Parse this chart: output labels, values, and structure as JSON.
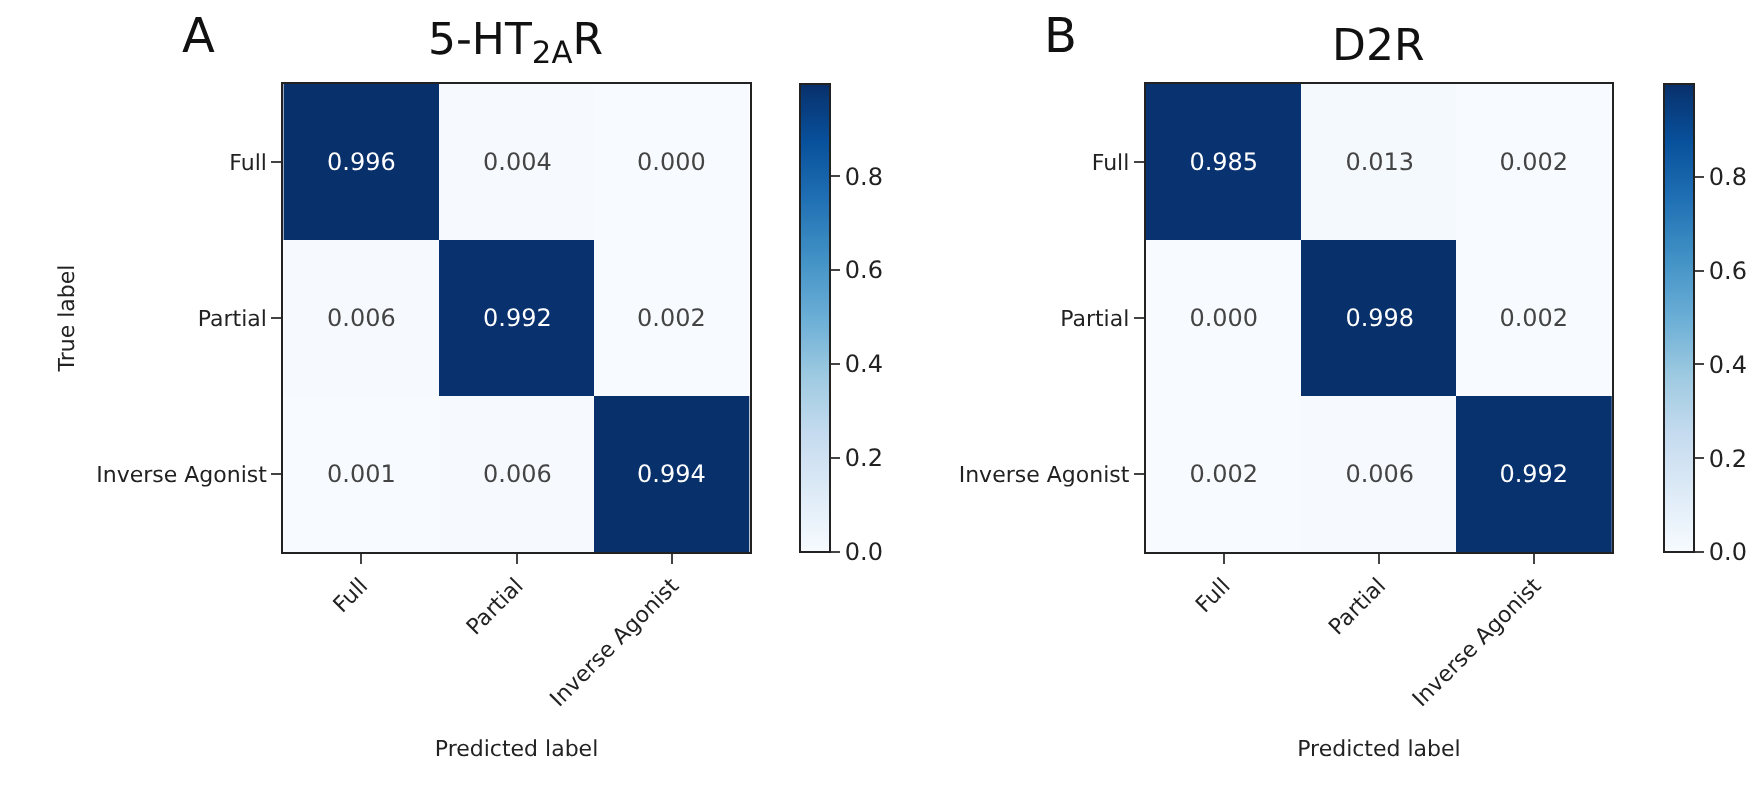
{
  "chart_data": [
    {
      "type": "heatmap",
      "title": "5-HT$_{2A}$R",
      "annotations": [
        "A"
      ],
      "xlabel": "Predicted label",
      "ylabel": "True label",
      "categories": [
        "Full",
        "Partial",
        "Inverse Agonist"
      ],
      "y_categories": [
        "Full",
        "Partial",
        "Inverse Agonist"
      ],
      "cells": [
        [
          0.996,
          0.004,
          0.0
        ],
        [
          0.006,
          0.992,
          0.002
        ],
        [
          0.001,
          0.006,
          0.994
        ]
      ],
      "cell_labels": [
        [
          "0.996",
          "0.004",
          "0.000"
        ],
        [
          "0.006",
          "0.992",
          "0.002"
        ],
        [
          "0.001",
          "0.006",
          "0.994"
        ]
      ],
      "clim": [
        0,
        0.996
      ],
      "cticks": [
        {
          "value": 0,
          "label": "0.0"
        },
        0.2,
        0.4,
        0.6,
        0.8
      ]
    },
    {
      "type": "heatmap",
      "title": "D2R",
      "annotations": [
        "B"
      ],
      "xlabel": "Predicted label",
      "categories": [
        "Full",
        "Partial",
        "Inverse Agonist"
      ],
      "y_categories": [
        "Full",
        "Partial",
        "Inverse Agonist"
      ],
      "cells": [
        [
          0.985,
          0.013,
          0.002
        ],
        [
          0.0,
          0.998,
          0.002
        ],
        [
          0.002,
          0.006,
          0.992
        ]
      ],
      "cell_labels": [
        [
          "0.985",
          "0.013",
          "0.002"
        ],
        [
          "0.000",
          "0.998",
          "0.002"
        ],
        [
          "0.002",
          "0.006",
          "0.992"
        ]
      ],
      "clim": [
        0,
        0.998
      ],
      "cticks": [
        {
          "value": 0,
          "label": "0.0"
        },
        0.2,
        0.4,
        0.6,
        0.8
      ]
    }
  ]
}
